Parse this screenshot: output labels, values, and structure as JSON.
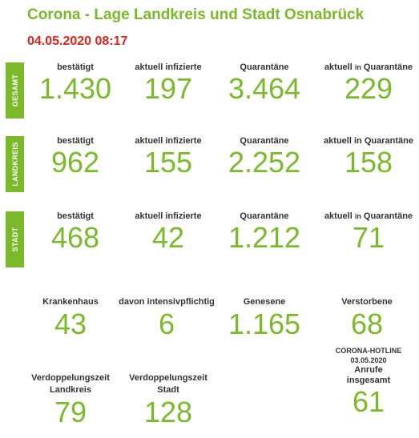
{
  "header": {
    "title": "Corona - Lage Landkreis und Stadt Osnabrück",
    "date": "04.05.2020 08:17"
  },
  "labels": {
    "confirmed": "bestätigt",
    "active": "aktuell infizierte",
    "quarantine": "Quarantäne",
    "current_quarantine_prefix": "aktuell",
    "current_quarantine_in": "in",
    "current_quarantine_suffix": "Quarantäne"
  },
  "sections": [
    {
      "tab": "GESAMT",
      "confirmed": "1.430",
      "active": "197",
      "quarantine": "3.464",
      "current_quarantine": "229"
    },
    {
      "tab": "LANDKREIS",
      "confirmed": "962",
      "active": "155",
      "quarantine": "2.252",
      "current_quarantine": "158"
    },
    {
      "tab": "STADT",
      "confirmed": "468",
      "active": "42",
      "quarantine": "1.212",
      "current_quarantine": "71"
    }
  ],
  "row4": {
    "hospital_label": "Krankenhaus",
    "hospital_value": "43",
    "intensive_label": "davon intensivpflichtig",
    "intensive_value": "6",
    "recovered_label": "Genesene",
    "recovered_value": "1.165",
    "deceased_label": "Verstorbene",
    "deceased_value": "68"
  },
  "row5": {
    "doubling_lk_label1": "Verdoppelungszeit",
    "doubling_lk_label2": "Landkreis",
    "doubling_lk_value": "79",
    "doubling_st_label1": "Verdoppelungszeit",
    "doubling_st_label2": "Stadt",
    "doubling_st_value": "128",
    "hotline_title": "CORONA-HOTLINE",
    "hotline_date": "03.05.2020",
    "hotline_label1": "Anrufe",
    "hotline_label2": "insgesamt",
    "hotline_value": "61"
  },
  "colors": {
    "accent_green": "#7ab929",
    "date_red": "#e2231a",
    "label_dark": "#333333"
  }
}
